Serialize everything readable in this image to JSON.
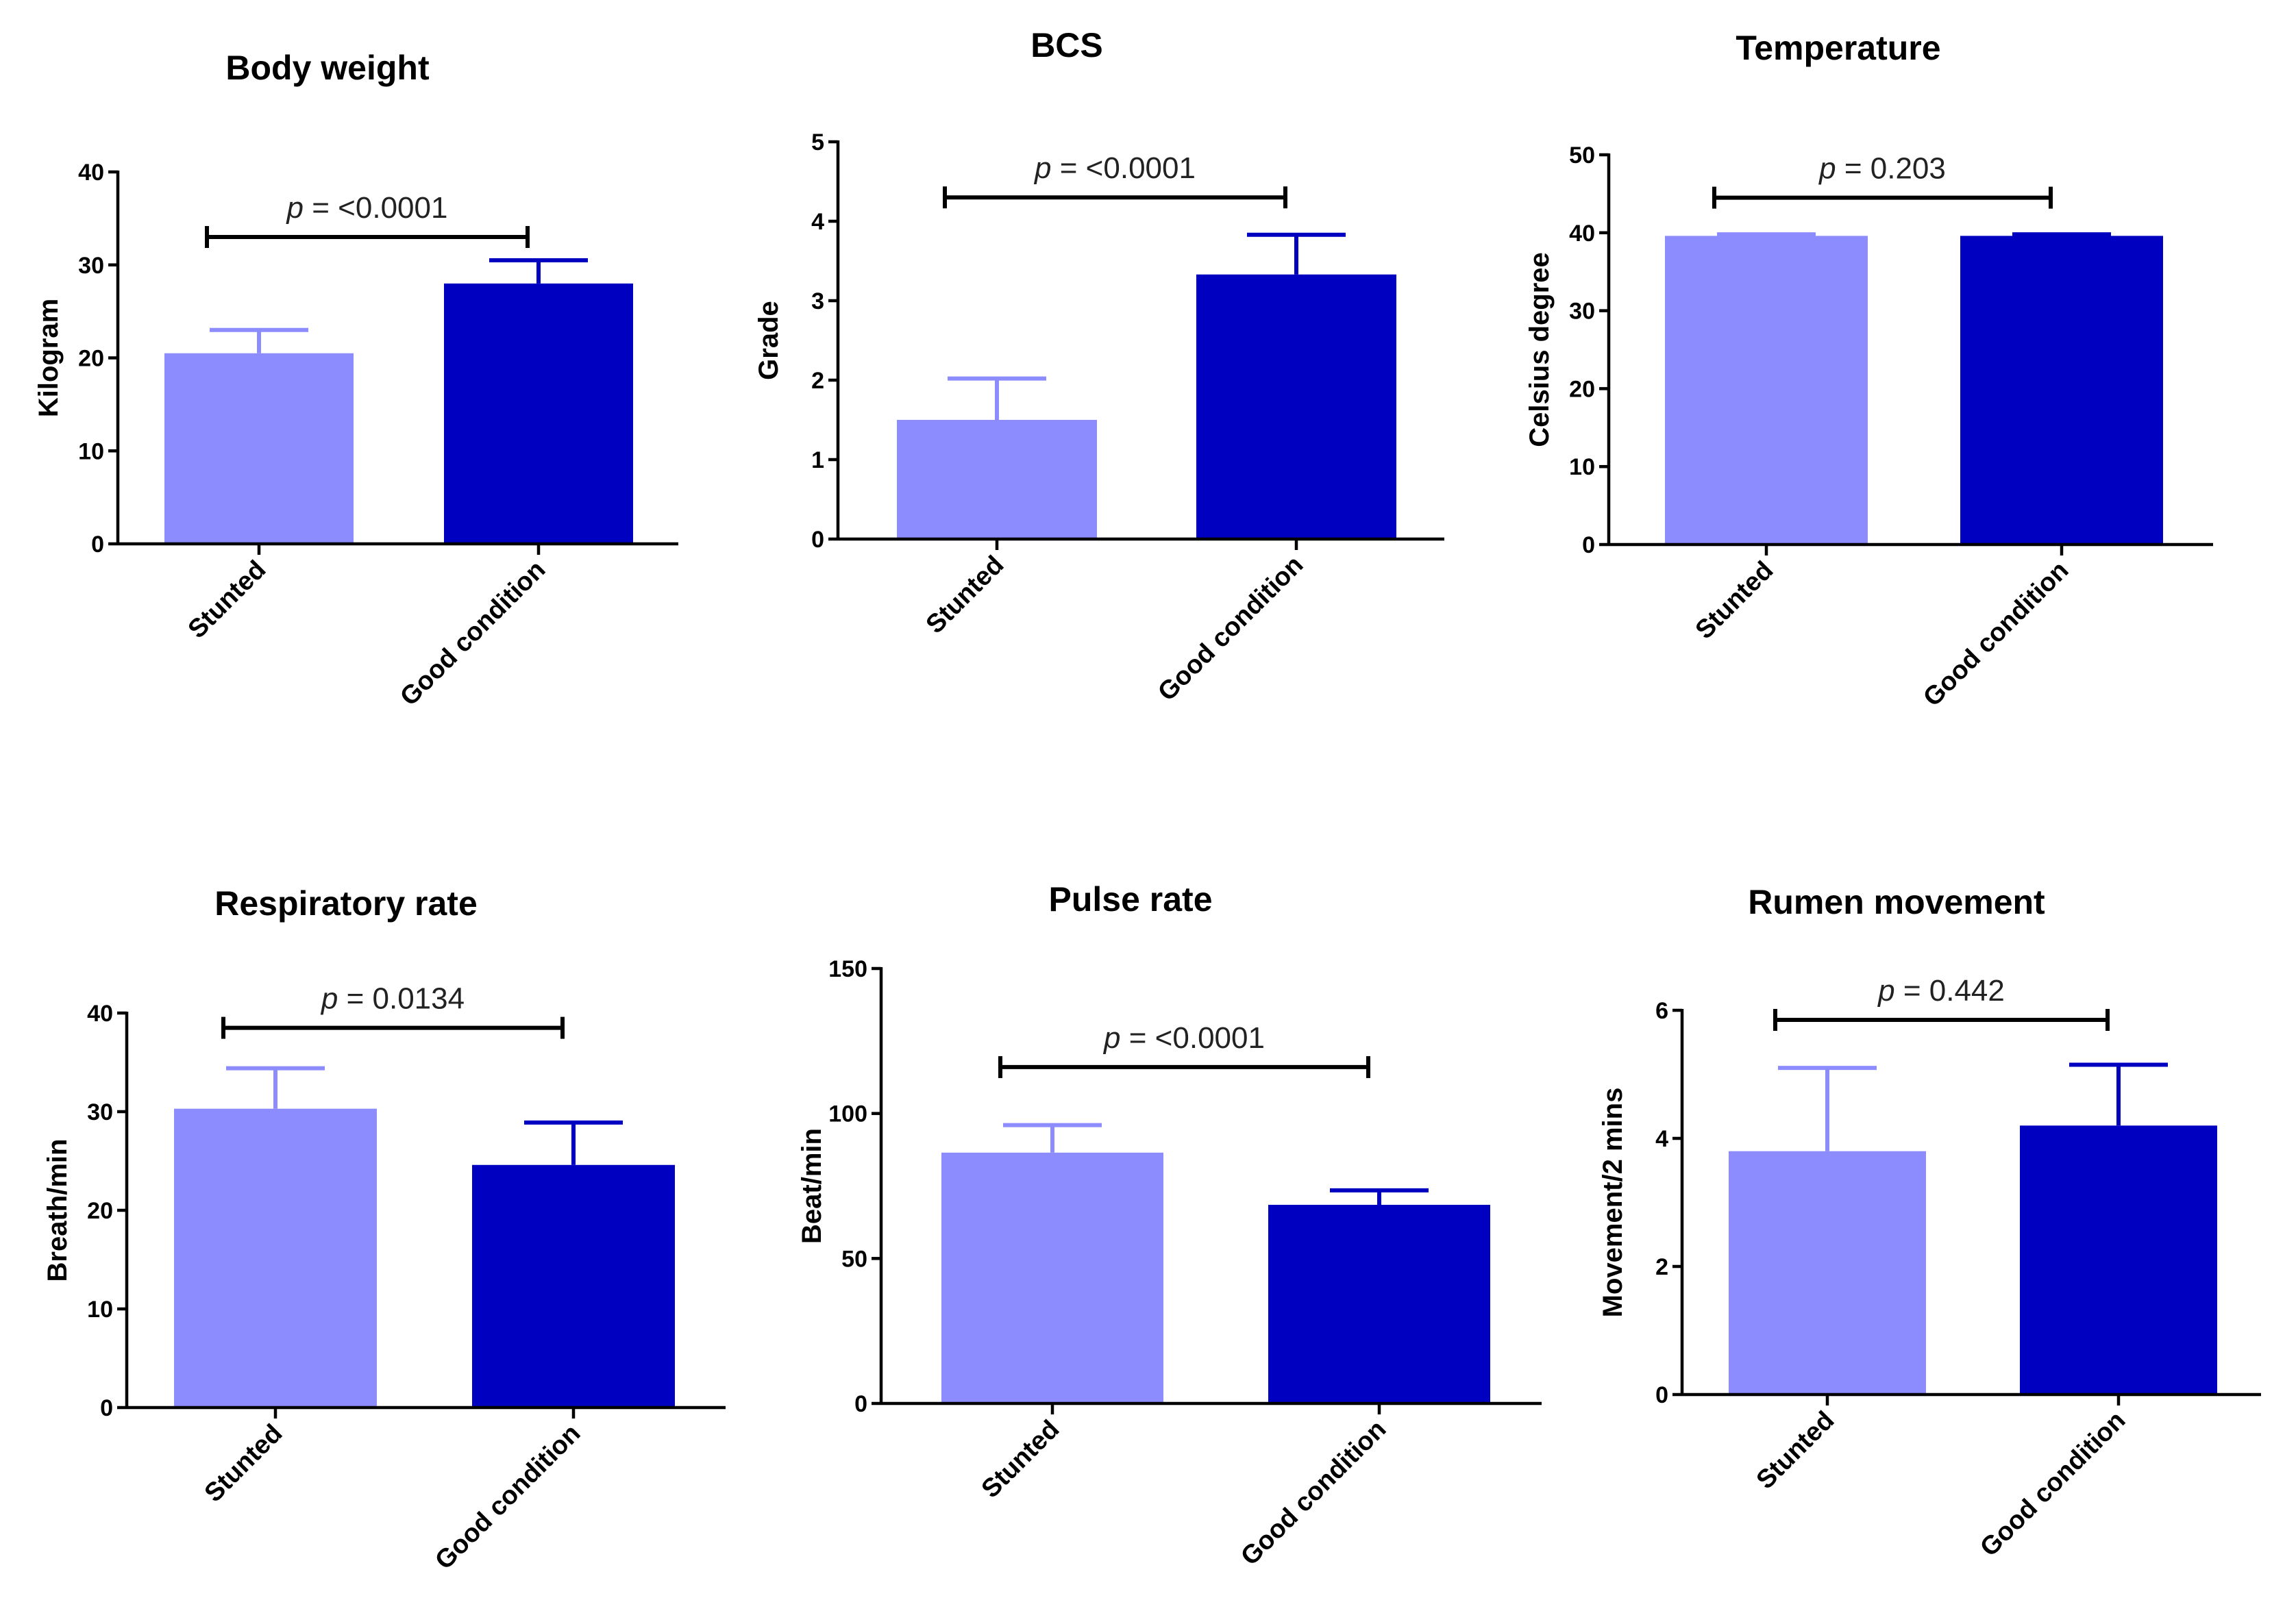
{
  "chart_data": [
    {
      "type": "bar",
      "title": "Body weight",
      "ylabel": "Kilogram",
      "categories": [
        "Stunted",
        "Good condition"
      ],
      "values": [
        20.5,
        28
      ],
      "errors": [
        2.5,
        2.5
      ],
      "ylim": [
        0,
        40
      ],
      "yticks": [
        0,
        10,
        20,
        30,
        40
      ],
      "ytick_labels": [
        "0",
        "10",
        "20",
        "30",
        "40"
      ],
      "bar_colors": [
        "#8c8cff",
        "#0000c0"
      ],
      "p_prefix": "p",
      "p_value": " = <0.0001",
      "sig_level": 33,
      "grid": false
    },
    {
      "type": "bar",
      "title": "BCS",
      "ylabel": "Grade",
      "categories": [
        "Stunted",
        "Good condition"
      ],
      "values": [
        1.5,
        3.33
      ],
      "errors": [
        0.52,
        0.5
      ],
      "ylim": [
        0,
        5
      ],
      "yticks": [
        0,
        1,
        2,
        3,
        4,
        5
      ],
      "ytick_labels": [
        "0",
        "1",
        "2",
        "3",
        "4",
        "5"
      ],
      "bar_colors": [
        "#8c8cff",
        "#0000c0"
      ],
      "p_prefix": "p",
      "p_value": " = <0.0001",
      "sig_level": 4.3,
      "grid": false
    },
    {
      "type": "bar",
      "title": "Temperature",
      "ylabel": "Celsius degree",
      "categories": [
        "Stunted",
        "Good condition"
      ],
      "values": [
        39.6,
        39.6
      ],
      "errors": [
        0.2,
        0.2
      ],
      "ylim": [
        0,
        50
      ],
      "yticks": [
        0,
        10,
        20,
        30,
        40,
        50
      ],
      "ytick_labels": [
        "0",
        "10",
        "20",
        "30",
        "40",
        "50"
      ],
      "bar_colors": [
        "#8c8cff",
        "#0000c0"
      ],
      "p_prefix": "p",
      "p_value": " = 0.203",
      "sig_level": 44.5,
      "grid": false
    },
    {
      "type": "bar",
      "title": "Respiratory rate",
      "ylabel": "Breath/min",
      "categories": [
        "Stunted",
        "Good condition"
      ],
      "values": [
        30.3,
        24.6
      ],
      "errors": [
        4.1,
        4.3
      ],
      "ylim": [
        0,
        40
      ],
      "yticks": [
        0,
        10,
        20,
        30,
        40
      ],
      "ytick_labels": [
        "0",
        "10",
        "20",
        "30",
        "40"
      ],
      "bar_colors": [
        "#8c8cff",
        "#0000c0"
      ],
      "p_prefix": "p",
      "p_value": " = 0.0134",
      "sig_level": 38.5,
      "grid": false
    },
    {
      "type": "bar",
      "title": "Pulse rate",
      "ylabel": "Beat/min",
      "categories": [
        "Stunted",
        "Good condition"
      ],
      "values": [
        86.5,
        68.5
      ],
      "errors": [
        9.5,
        5
      ],
      "ylim": [
        0,
        150
      ],
      "yticks": [
        0,
        50,
        100,
        150
      ],
      "ytick_labels": [
        "0",
        "50",
        "100",
        "150"
      ],
      "bar_colors": [
        "#8c8cff",
        "#0000c0"
      ],
      "p_prefix": "p",
      "p_value": " = <0.0001",
      "sig_level": 116,
      "grid": false
    },
    {
      "type": "bar",
      "title": "Rumen movement",
      "ylabel": "Movement/2 mins",
      "categories": [
        "Stunted",
        "Good condition"
      ],
      "values": [
        3.8,
        4.2
      ],
      "errors": [
        1.3,
        0.95
      ],
      "ylim": [
        0,
        6
      ],
      "yticks": [
        0,
        2,
        4,
        6
      ],
      "ytick_labels": [
        "0",
        "2",
        "4",
        "6"
      ],
      "bar_colors": [
        "#8c8cff",
        "#0000c0"
      ],
      "p_prefix": "p",
      "p_value": " = 0.442",
      "sig_level": 5.85,
      "grid": false
    }
  ]
}
